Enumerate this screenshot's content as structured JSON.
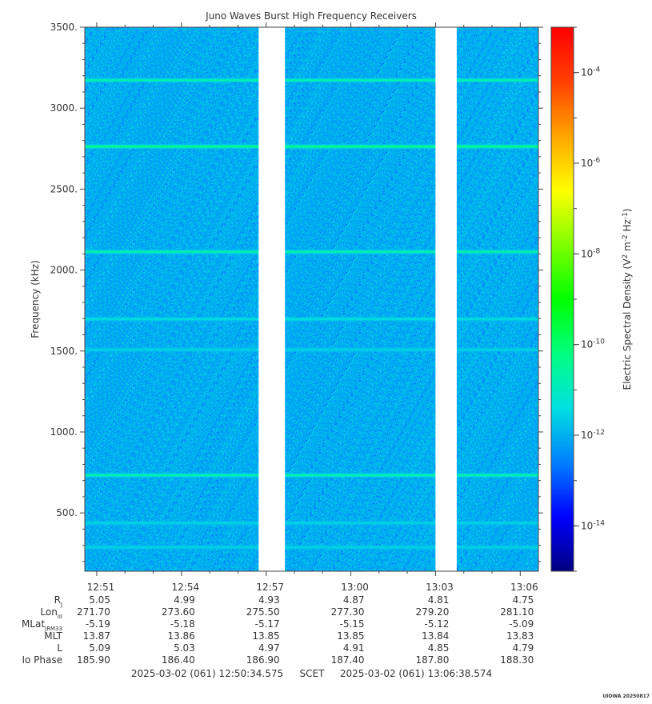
{
  "chart_data": {
    "type": "heatmap",
    "title": "Juno Waves Burst High Frequency Receivers",
    "ylabel": "Frequency (kHz)",
    "ylim": [
      140,
      3500
    ],
    "yticks": [
      500,
      1000,
      1500,
      2000,
      2500,
      3000,
      3500
    ],
    "ytick_labels": [
      "500.",
      "1000.",
      "1500.",
      "2000.",
      "2500.",
      "3000.",
      "3500."
    ],
    "xlim_minutes": [
      "12:50:34.575",
      "13:06:38.574"
    ],
    "xtick_labels": [
      "12:51",
      "12:54",
      "12:57",
      "13:00",
      "13:03",
      "13:06"
    ],
    "data_gaps": [
      [
        "12:56:44",
        "12:57:40"
      ],
      [
        "13:03:00",
        "13:03:45"
      ]
    ],
    "background_level": 1e-12,
    "emission_lines_kHz": [
      {
        "freq": 3175,
        "level": 3e-11
      },
      {
        "freq": 2765,
        "level": 1e-10
      },
      {
        "freq": 2115,
        "level": 3e-11
      },
      {
        "freq": 1700,
        "level": 5e-12
      },
      {
        "freq": 1510,
        "level": 3e-12
      },
      {
        "freq": 735,
        "level": 3e-11
      },
      {
        "freq": 440,
        "level": 3e-12
      },
      {
        "freq": 290,
        "level": 3e-12
      }
    ],
    "colorbar": {
      "label": "Electric Spectral Density (V² m⁻² Hz⁻¹)",
      "label_base": "Electric Spectral Density (V",
      "label_sup1": "2",
      "label_mid1": " m",
      "label_sup2": "-2",
      "label_mid2": " Hz",
      "label_sup3": "-1",
      "label_end": ")",
      "scale": "log",
      "range": [
        1e-15,
        0.001
      ],
      "ticks": [
        {
          "value": -14,
          "base": "10",
          "exp": "-14"
        },
        {
          "value": -12,
          "base": "10",
          "exp": "-12"
        },
        {
          "value": -10,
          "base": "10",
          "exp": "-10"
        },
        {
          "value": -8,
          "base": "10",
          "exp": "-8"
        },
        {
          "value": -6,
          "base": "10",
          "exp": "-6"
        },
        {
          "value": -4,
          "base": "10",
          "exp": "-4"
        }
      ],
      "colors": [
        "#000080",
        "#0000ff",
        "#0080ff",
        "#00e0e0",
        "#00ff80",
        "#00ff00",
        "#80ff00",
        "#ffff00",
        "#ffa500",
        "#ff4000",
        "#ff0000"
      ]
    },
    "ephemeris": {
      "rows": [
        {
          "label": "R",
          "sub": "J",
          "values": [
            "5.05",
            "4.99",
            "4.93",
            "4.87",
            "4.81",
            "4.75"
          ]
        },
        {
          "label": "Lon",
          "sub": "III",
          "values": [
            "271.70",
            "273.60",
            "275.50",
            "277.30",
            "279.20",
            "281.10"
          ]
        },
        {
          "label": "MLat",
          "sub": "JRM33",
          "values": [
            "-5.19",
            "-5.18",
            "-5.17",
            "-5.15",
            "-5.12",
            "-5.09"
          ]
        },
        {
          "label": "MLT",
          "sub": "",
          "values": [
            "13.87",
            "13.86",
            "13.85",
            "13.85",
            "13.84",
            "13.83"
          ]
        },
        {
          "label": "L",
          "sub": "",
          "values": [
            "5.09",
            "5.03",
            "4.97",
            "4.91",
            "4.85",
            "4.79"
          ]
        },
        {
          "label": "Io Phase",
          "sub": "",
          "values": [
            "185.90",
            "186.40",
            "186.90",
            "187.40",
            "187.80",
            "188.30"
          ]
        }
      ]
    },
    "time_range": {
      "start": "2025-03-02 (061) 12:50:34.575",
      "middle": "SCET",
      "end": "2025-03-02 (061) 13:06:38.574"
    },
    "credit": "UIOWA 20250817"
  }
}
